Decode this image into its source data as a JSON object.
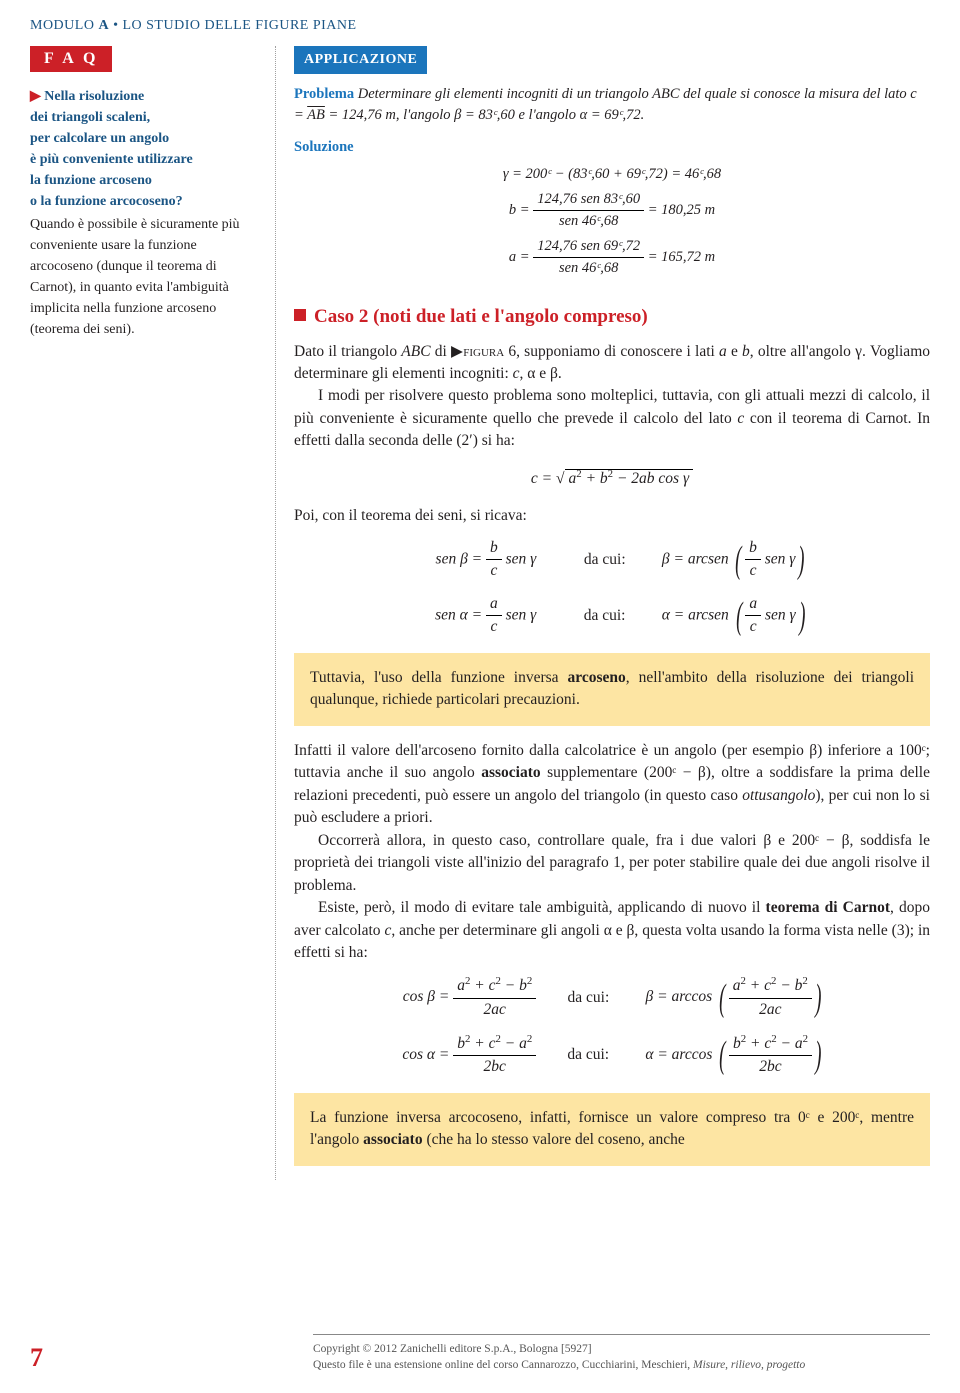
{
  "header": {
    "modulo": "MODULO",
    "letter": "A",
    "bullet": "•",
    "title": "LO STUDIO DELLE FIGURE PIANE"
  },
  "faq": {
    "tag": "F A Q",
    "question_l1": "Nella risoluzione",
    "question_l2": "dei triangoli scaleni,",
    "question_l3": "per calcolare un angolo",
    "question_l4": "è più conveniente utilizzare",
    "question_l5": "la funzione arcoseno",
    "question_l6": "o la funzione arcocoseno?",
    "answer": "Quando è possibile è sicuramente più conveniente usare la funzione arcocoseno (dunque il teorema di Carnot), in quanto evita l'ambiguità implicita nella funzione arcoseno (teorema dei seni)."
  },
  "app": {
    "tag": "APPLICAZIONE",
    "problema_lbl": "Problema",
    "problema_text": "Determinare gli elementi incogniti di un triangolo ABC del quale si conosce la misura del lato c =",
    "problema_ab": "AB",
    "problema_text2": "= 124,76 m, l'angolo β = 83ᶜ,60 e l'angolo α = 69ᶜ,72.",
    "soluzione_lbl": "Soluzione",
    "eq_gamma": "γ = 200ᶜ − (83ᶜ,60 + 69ᶜ,72) = 46ᶜ,68",
    "eq_b_lhs": "b =",
    "eq_b_num": "124,76 sen 83ᶜ,60",
    "eq_b_den": "sen 46ᶜ,68",
    "eq_b_rhs": "= 180,25 m",
    "eq_a_lhs": "a =",
    "eq_a_num": "124,76 sen 69ᶜ,72",
    "eq_a_den": "sen 46ᶜ,68",
    "eq_a_rhs": "= 165,72 m"
  },
  "case2": {
    "title": "Caso 2 (noti due lati e l'angolo compreso)",
    "p1a": "Dato il triangolo ",
    "p1b": "ABC",
    "p1c": " di ",
    "figref": "▶figura",
    "fignum": " 6",
    "p1d": ", supponiamo di conoscere i lati ",
    "p1e": "a",
    "p1f": " e ",
    "p1g": "b",
    "p1h": ", oltre all'angolo γ. Vogliamo determinare gli elementi incogniti: ",
    "p1i": "c",
    "p1j": ", α e β.",
    "p2": "I modi per risolvere questo problema sono molteplici, tuttavia, con gli attuali mezzi di calcolo, il più conveniente è sicuramente quello che prevede il calcolo del lato ",
    "p2c": "c",
    "p2d": " con il teorema di Carnot. In effetti dalla seconda delle (2′) si ha:",
    "poi": "Poi, con il teorema dei seni, si ricava:",
    "dacui": "da cui:",
    "hl1a": "Tuttavia, l'uso della funzione inversa ",
    "hl1b": "arcoseno",
    "hl1c": ", nell'ambito della risoluzione dei triangoli qualunque, richiede particolari precauzioni.",
    "p3": "Infatti il valore dell'arcoseno fornito dalla calcolatrice è un angolo (per esempio β) inferiore a 100ᶜ; tuttavia anche il suo angolo ",
    "p3b": "associato",
    "p3c": " supplementare (200ᶜ − β), oltre a soddisfare la prima delle relazioni precedenti, può essere un angolo del triangolo (in questo caso ",
    "p3d": "ottusangolo",
    "p3e": "), per cui non lo si può escludere a priori.",
    "p4": "Occorrerà allora, in questo caso, controllare quale, fra i due valori β e 200ᶜ − β, soddisfa le proprietà dei triangoli viste all'inizio del paragrafo 1, per poter stabilire quale dei due angoli risolve il problema.",
    "p5a": "Esiste, però, il modo di evitare tale ambiguità, applicando di nuovo il ",
    "p5b": "teorema di Carnot",
    "p5c": ", dopo aver calcolato ",
    "p5cc": "c",
    "p5d": ", anche per determinare gli angoli α e β, questa volta usando la forma vista nelle (3); in effetti si ha:",
    "hl2a": "La funzione inversa arcocoseno, infatti, fornisce un valore compreso tra 0ᶜ e 200ᶜ, mentre l'angolo ",
    "hl2b": "associato",
    "hl2c": " (che ha lo stesso valore del coseno, anche"
  },
  "footer": {
    "page": "7",
    "copy1": "Copyright © 2012 Zanichelli editore S.p.A., Bologna [5927]",
    "copy2": "Questo file è una estensione online del corso Cannarozzo, Cucchiarini, Meschieri, ",
    "copy3": "Misure, rilievo, progetto"
  }
}
